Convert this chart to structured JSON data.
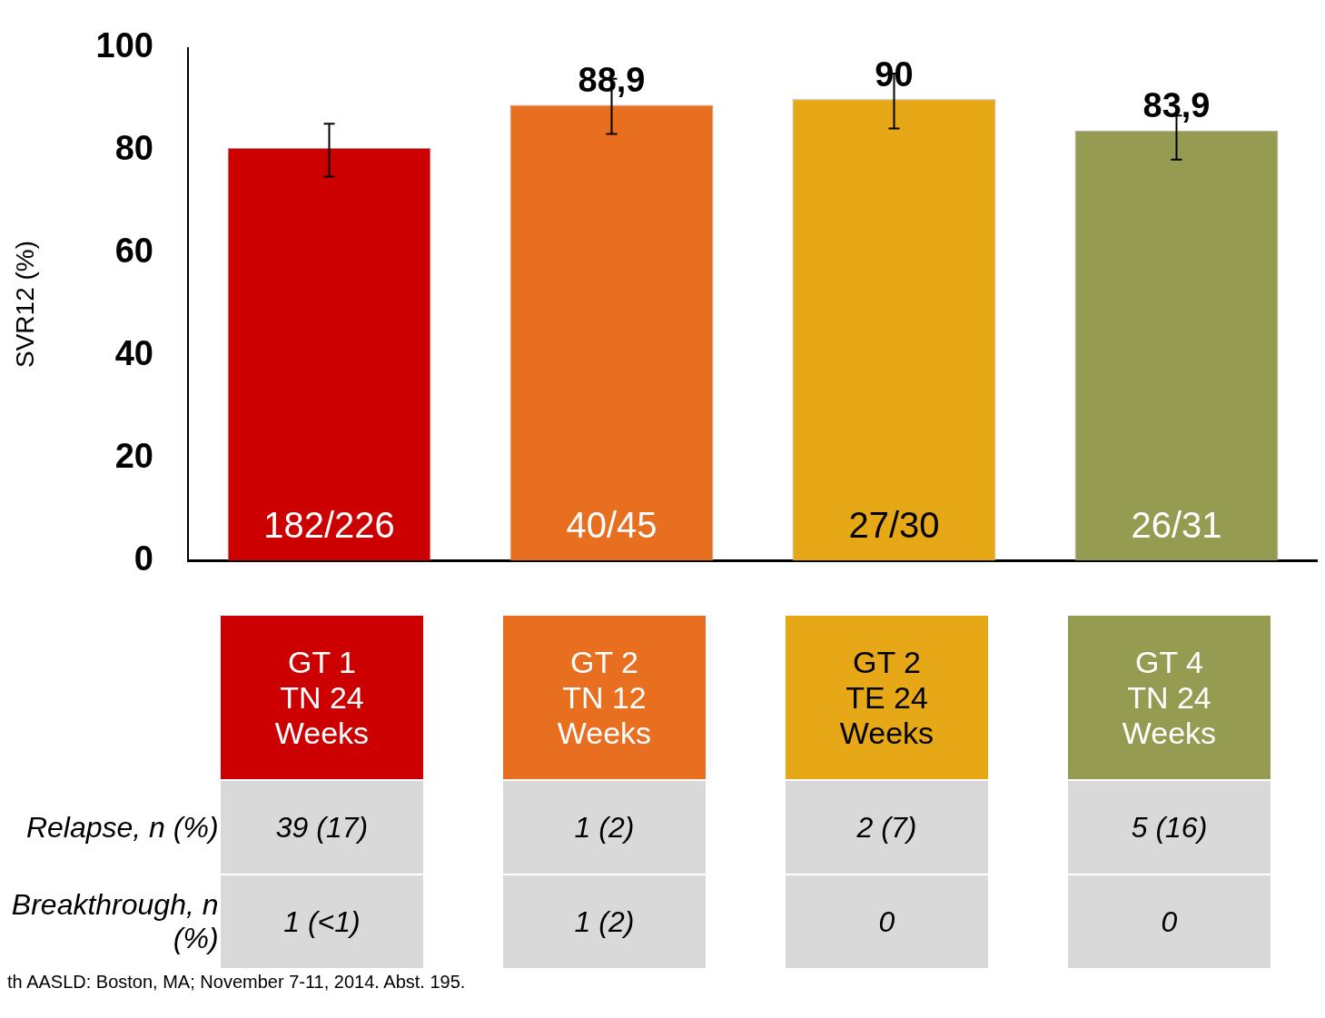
{
  "chart_data": {
    "type": "bar",
    "ylabel": "SVR12 (%)",
    "categories": [
      "GT 1 TN 24 Weeks",
      "GT 2 TN 12 Weeks",
      "GT 2 TE 24 Weeks",
      "GT 4 TN 24 Weeks"
    ],
    "values": [
      80.5,
      88.9,
      90,
      83.9
    ],
    "colors": [
      "#cc0000",
      "#e86e20",
      "#e6a817",
      "#959b50"
    ],
    "errors": [
      [
        74.9,
        85.2
      ],
      [
        83.2,
        94
      ],
      [
        84.3,
        95
      ],
      [
        78.2,
        86.8
      ]
    ],
    "value_labels": [
      null,
      "88,9",
      "90",
      "83,9"
    ],
    "ylim": [
      0,
      100
    ],
    "yticks": [
      0,
      20,
      40,
      60,
      80,
      100
    ],
    "grid": false,
    "legend": false,
    "annotations": [
      {
        "text": "182/226",
        "x": "GT 1 TN 24 Weeks",
        "y": 0
      },
      {
        "text": "40/45",
        "x": "GT 2 TN 12 Weeks",
        "y": 0
      },
      {
        "text": "27/30",
        "x": "GT 2 TE 24 Weeks",
        "y": 0
      },
      {
        "text": "26/31",
        "x": "GT 4 TN 24 Weeks",
        "y": 0
      },
      "Relapse, n (%)",
      "39 (17)",
      "1 (2)",
      "2 (7)",
      "5 (16)",
      "Breakthrough, n (%)",
      "1 (<1)",
      "1 (2)",
      "0",
      "0",
      "th AASLD: Boston, MA; November 7-11, 2014. Abst. 195."
    ]
  }
}
